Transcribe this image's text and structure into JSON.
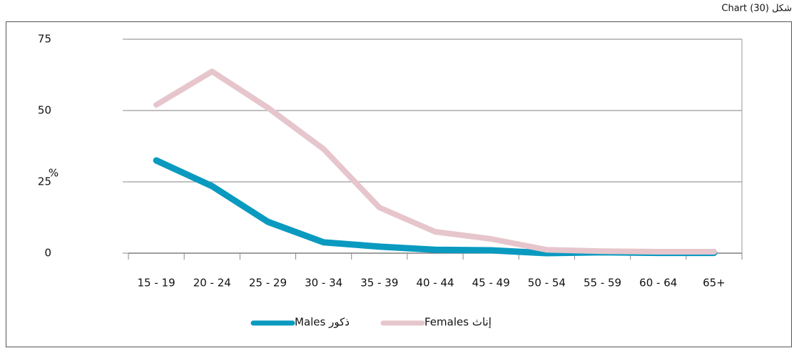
{
  "chart_data": {
    "type": "line",
    "title": "شكل (30) Chart",
    "ylabel": "%",
    "categories": [
      "15 - 19",
      "20 - 24",
      "25 - 29",
      "30 - 34",
      "35 - 39",
      "40 - 44",
      "45 - 49",
      "50 - 54",
      "55 - 59",
      "60 - 64",
      "65+"
    ],
    "series": [
      {
        "name": "Males ذكور",
        "color": "#0a9ac0",
        "values": [
          32.5,
          23.5,
          11,
          3.8,
          2.3,
          1.2,
          1,
          0,
          0.3,
          0.1,
          0.1
        ]
      },
      {
        "name": "Females إناث",
        "color": "#e6c6cc",
        "values": [
          52,
          63.7,
          51,
          36.5,
          16,
          7.5,
          5,
          1.2,
          0.7,
          0.5,
          0.5
        ]
      }
    ],
    "ylim": [
      0,
      75
    ],
    "yticks": [
      0,
      25,
      50,
      75
    ],
    "grid": true,
    "legend": "bottom"
  }
}
